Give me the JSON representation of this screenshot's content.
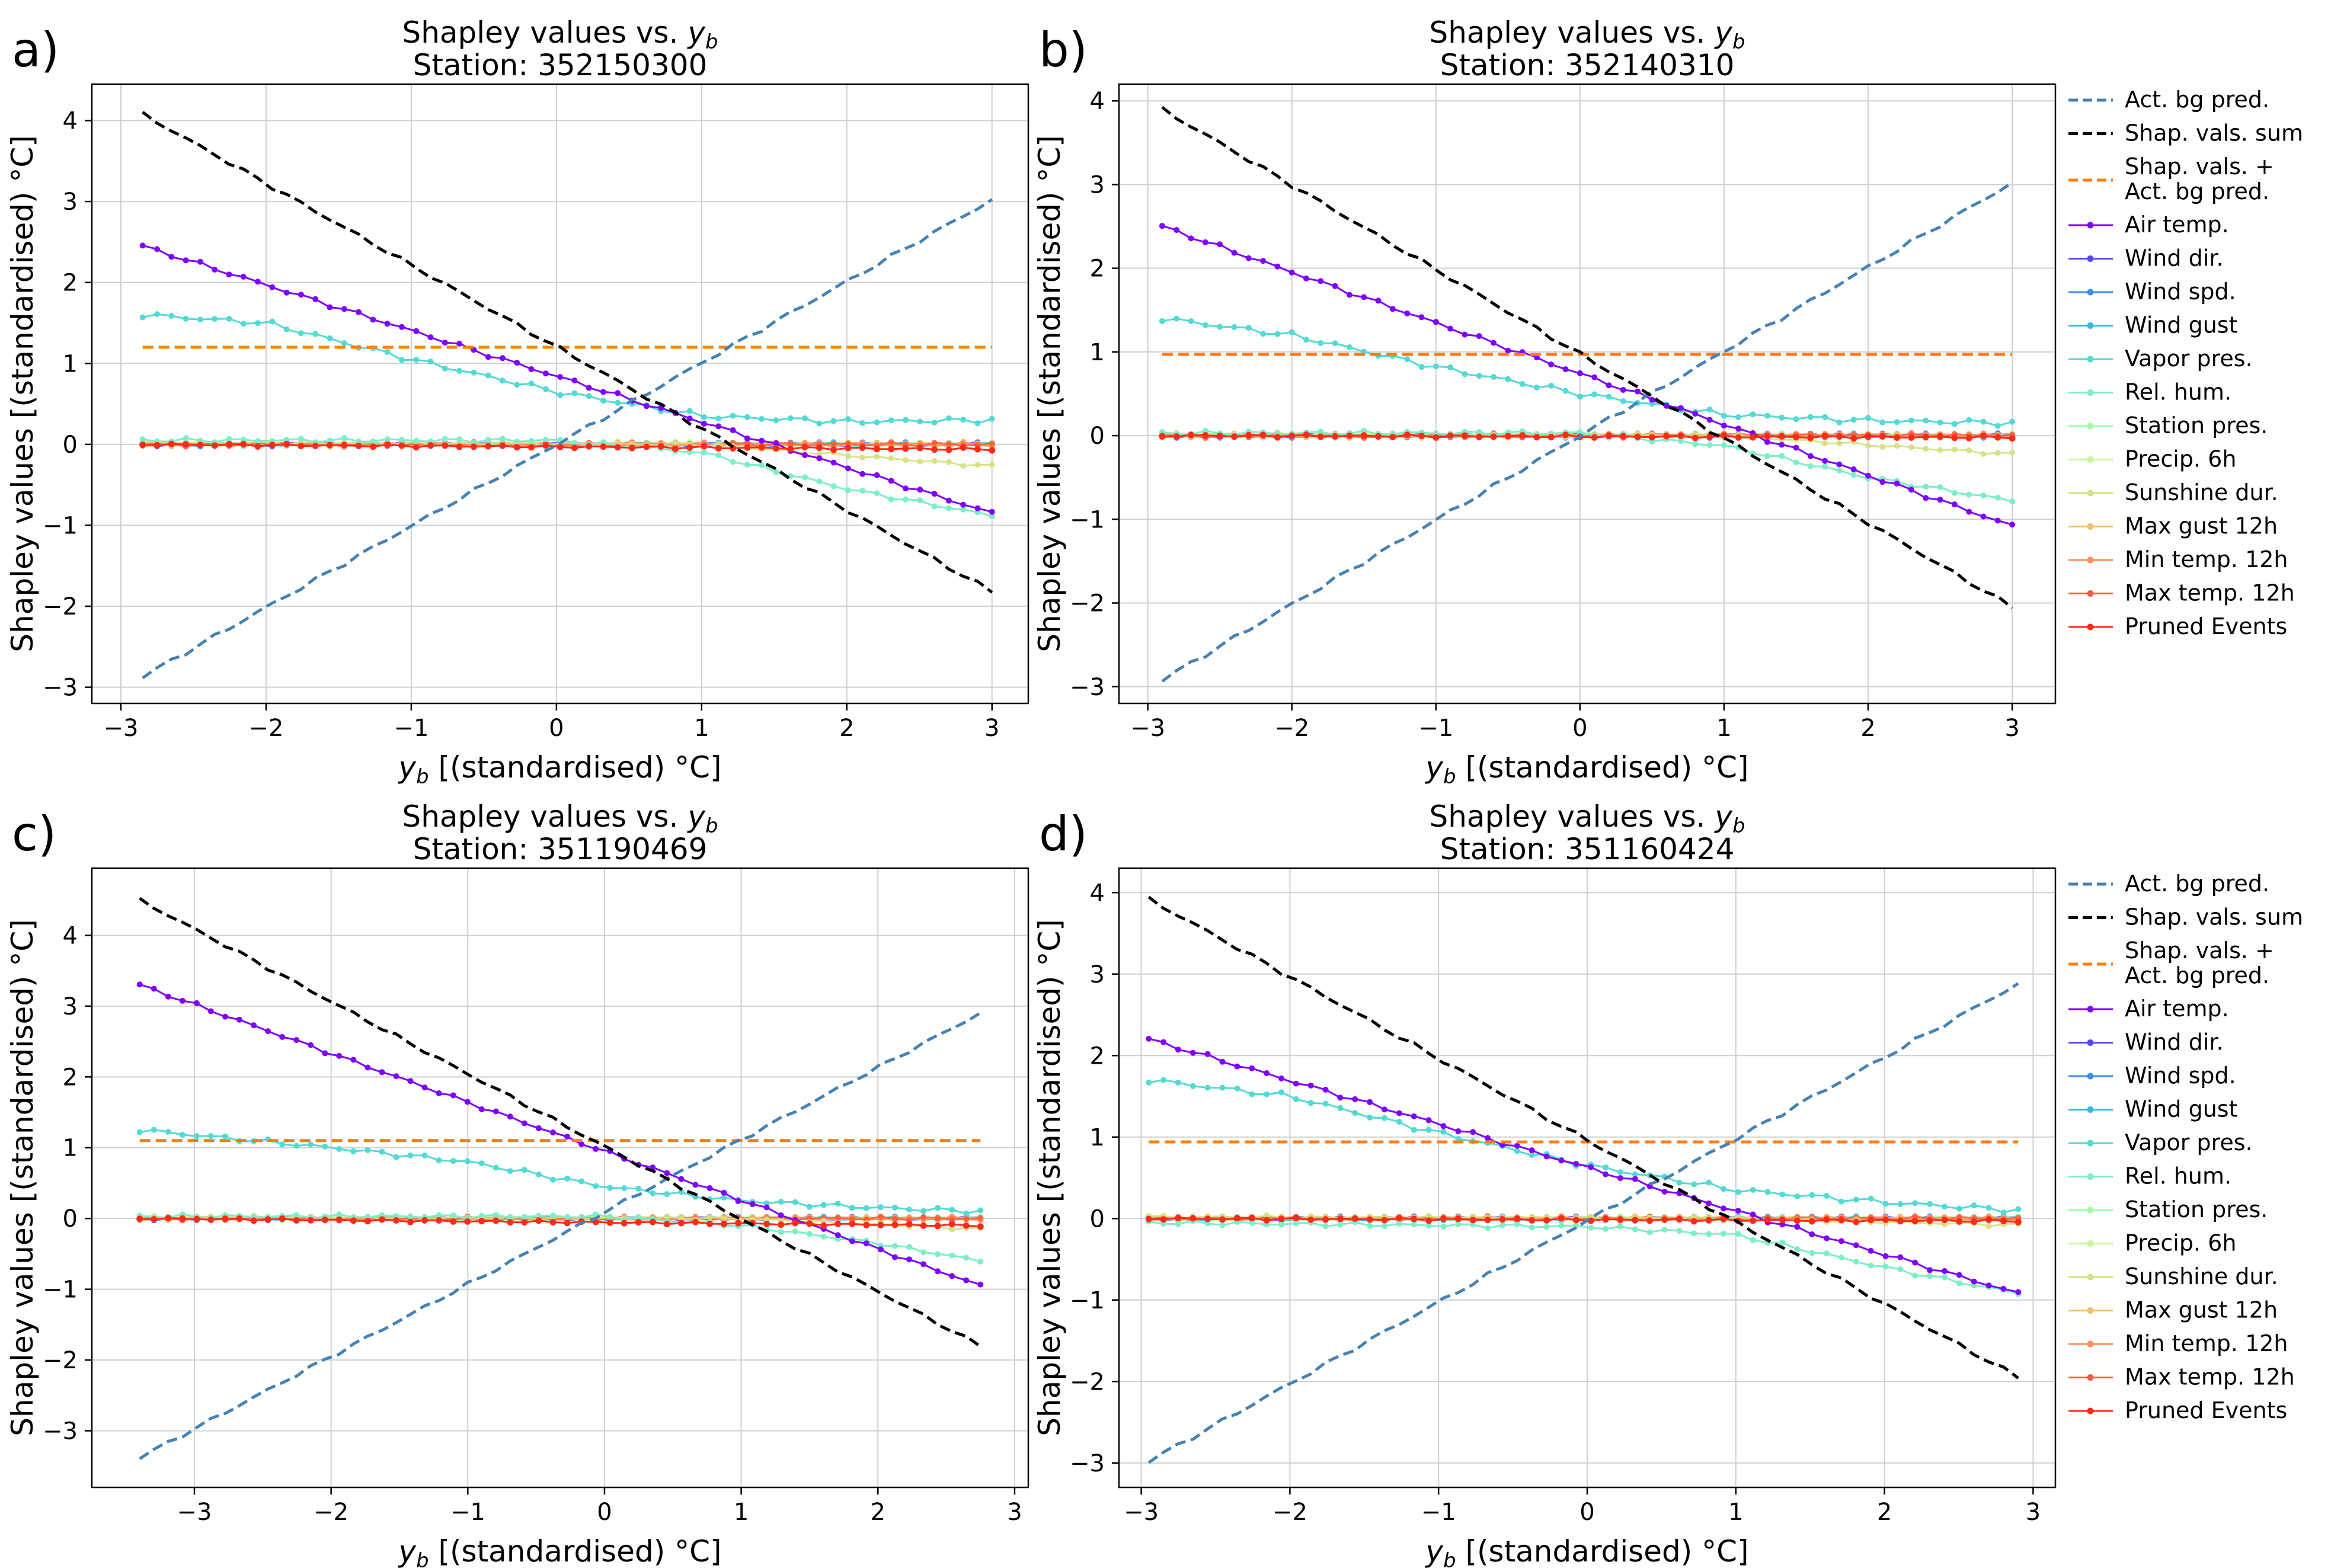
{
  "figure": {
    "legend_order": [
      "act_bg",
      "shap_sum",
      "shap_plus_bg",
      "air_temp",
      "wind_dir",
      "wind_spd",
      "wind_gust",
      "vapor_pres",
      "rel_hum",
      "station_pres",
      "precip_6h",
      "sunshine_dur",
      "max_gust_12h",
      "min_temp_12h",
      "max_temp_12h",
      "pruned_events"
    ],
    "legend_labels": {
      "act_bg": "Act. bg pred.",
      "shap_sum": "Shap. vals. sum",
      "shap_plus_bg": "Shap. vals. +\nAct. bg pred.",
      "air_temp": "Air temp.",
      "wind_dir": "Wind dir.",
      "wind_spd": "Wind spd.",
      "wind_gust": "Wind gust",
      "vapor_pres": "Vapor pres.",
      "rel_hum": "Rel. hum.",
      "station_pres": "Station pres.",
      "precip_6h": "Precip. 6h",
      "sunshine_dur": "Sunshine dur.",
      "max_gust_12h": "Max gust 12h",
      "min_temp_12h": "Min temp. 12h",
      "max_temp_12h": "Max temp. 12h",
      "pruned_events": "Pruned Events"
    },
    "series_colors": {
      "act_bg": "#4682b4",
      "shap_sum": "#000000",
      "shap_plus_bg": "#ff7f0e",
      "air_temp": "#8000ff",
      "wind_dir": "#5a48f8",
      "wind_spd": "#3b8ef0",
      "wind_gust": "#2fb8e8",
      "vapor_pres": "#53dad5",
      "rel_hum": "#7cefc6",
      "station_pres": "#a2fbad",
      "precip_6h": "#c4f59a",
      "sunshine_dur": "#d7e07e",
      "max_gust_12h": "#f0c066",
      "min_temp_12h": "#ff8c52",
      "max_temp_12h": "#ff5a3c",
      "pruned_events": "#ff2a1a"
    }
  },
  "chart_data": [
    {
      "type": "line",
      "panel_label": "a)",
      "title": "Shapley values vs. y",
      "title_sub": "b",
      "subtitle": "Station: 352150300",
      "xlabel": "y",
      "xlabel_sub": "b",
      "xlabel_units": " [(standardised) °C]",
      "ylabel": "Shapley values [(standardised) °C]",
      "grid": true,
      "legend": false,
      "xlim": [
        -3.2,
        3.25
      ],
      "ylim": [
        -3.2,
        4.45
      ],
      "xticks": [
        -3,
        -2,
        -1,
        0,
        1,
        2,
        3
      ],
      "yticks": [
        -3,
        -2,
        -1,
        0,
        1,
        2,
        3,
        4
      ],
      "x_range": [
        -2.85,
        3.0
      ],
      "series": {
        "act_bg": {
          "x": [
            -2.85,
            3.0
          ],
          "y": [
            -2.87,
            3.02
          ]
        },
        "shap_sum": {
          "x": [
            -2.85,
            3.0
          ],
          "y": [
            4.08,
            -1.82
          ]
        },
        "shap_plus_bg": {
          "x": [
            -2.85,
            3.0
          ],
          "y": [
            1.2,
            1.2
          ]
        },
        "air_temp": {
          "x": [
            -2.85,
            3.0
          ],
          "y": [
            2.45,
            -0.85
          ]
        },
        "vapor_pres_a": {
          "x": [
            -2.85,
            -2.0,
            -1.0,
            0.0,
            1.0,
            2.0,
            3.0
          ],
          "y": [
            1.6,
            1.5,
            1.05,
            0.65,
            0.35,
            0.28,
            0.3
          ]
        },
        "rel_hum": {
          "x": [
            -2.85,
            0.0,
            1.0,
            2.0,
            3.0
          ],
          "y": [
            0.05,
            0.05,
            -0.1,
            -0.55,
            -0.88
          ]
        },
        "sunshine_dur": {
          "x": [
            -2.85,
            1.0,
            3.0
          ],
          "y": [
            0.02,
            0.0,
            -0.27
          ]
        },
        "pruned_events": {
          "x": [
            -2.85,
            3.0
          ],
          "y": [
            0.0,
            -0.06
          ]
        }
      }
    },
    {
      "type": "line",
      "panel_label": "b)",
      "title": "Shapley values vs. y",
      "title_sub": "b",
      "subtitle": "Station: 352140310",
      "xlabel": "y",
      "xlabel_sub": "b",
      "xlabel_units": " [(standardised) °C]",
      "ylabel": "Shapley values [(standardised) °C]",
      "grid": true,
      "legend": true,
      "legend_position": "outside-right",
      "xlim": [
        -3.2,
        3.3
      ],
      "ylim": [
        -3.2,
        4.2
      ],
      "xticks": [
        -3,
        -2,
        -1,
        0,
        1,
        2,
        3
      ],
      "yticks": [
        -3,
        -2,
        -1,
        0,
        1,
        2,
        3,
        4
      ],
      "x_range": [
        -2.9,
        3.0
      ],
      "series": {
        "act_bg": {
          "x": [
            -2.9,
            3.0
          ],
          "y": [
            -2.92,
            3.02
          ]
        },
        "shap_sum": {
          "x": [
            -2.9,
            3.0
          ],
          "y": [
            3.9,
            -2.05
          ]
        },
        "shap_plus_bg": {
          "x": [
            -2.9,
            3.0
          ],
          "y": [
            0.97,
            0.97
          ]
        },
        "air_temp": {
          "x": [
            -2.9,
            3.0
          ],
          "y": [
            2.5,
            -1.08
          ]
        },
        "vapor_pres_a": {
          "x": [
            -2.9,
            -2.0,
            -1.0,
            0.0,
            1.0,
            2.0,
            3.0
          ],
          "y": [
            1.4,
            1.2,
            0.82,
            0.5,
            0.25,
            0.18,
            0.15
          ]
        },
        "rel_hum": {
          "x": [
            -2.9,
            0.0,
            1.0,
            2.0,
            3.0
          ],
          "y": [
            0.03,
            0.03,
            -0.12,
            -0.5,
            -0.78
          ]
        },
        "sunshine_dur": {
          "x": [
            -2.9,
            1.0,
            3.0
          ],
          "y": [
            0.02,
            0.0,
            -0.22
          ]
        },
        "pruned_events": {
          "x": [
            -2.9,
            3.0
          ],
          "y": [
            0.0,
            -0.02
          ]
        }
      }
    },
    {
      "type": "line",
      "panel_label": "c)",
      "title": "Shapley values vs. y",
      "title_sub": "b",
      "subtitle": "Station: 351190469",
      "xlabel": "y",
      "xlabel_sub": "b",
      "xlabel_units": " [(standardised) °C]",
      "ylabel": "Shapley values [(standardised) °C]",
      "grid": true,
      "legend": false,
      "xlim": [
        -3.75,
        3.1
      ],
      "ylim": [
        -3.8,
        4.95
      ],
      "xticks": [
        -3,
        -2,
        -1,
        0,
        1,
        2,
        3
      ],
      "yticks": [
        -3,
        -2,
        -1,
        0,
        1,
        2,
        3,
        4
      ],
      "x_range": [
        -3.4,
        2.75
      ],
      "series": {
        "act_bg": {
          "x": [
            -3.4,
            2.75
          ],
          "y": [
            -3.38,
            2.9
          ]
        },
        "shap_sum": {
          "x": [
            -3.4,
            2.75
          ],
          "y": [
            4.5,
            -1.8
          ]
        },
        "shap_plus_bg": {
          "x": [
            -3.4,
            2.75
          ],
          "y": [
            1.1,
            1.1
          ]
        },
        "air_temp": {
          "x": [
            -3.4,
            2.75
          ],
          "y": [
            3.3,
            -0.95
          ]
        },
        "vapor_pres_a": {
          "x": [
            -3.4,
            -2.0,
            -1.0,
            0.0,
            1.0,
            2.0,
            2.75
          ],
          "y": [
            1.25,
            1.0,
            0.8,
            0.45,
            0.25,
            0.15,
            0.1
          ]
        },
        "rel_hum": {
          "x": [
            -3.4,
            0.0,
            1.0,
            2.0,
            2.75
          ],
          "y": [
            0.03,
            0.03,
            -0.1,
            -0.35,
            -0.6
          ]
        },
        "sunshine_dur": {
          "x": [
            -3.4,
            1.0,
            2.75
          ],
          "y": [
            0.02,
            0.0,
            -0.15
          ]
        },
        "pruned_events": {
          "x": [
            -3.4,
            2.75
          ],
          "y": [
            0.0,
            -0.1
          ]
        }
      }
    },
    {
      "type": "line",
      "panel_label": "d)",
      "title": "Shapley values vs. y",
      "title_sub": "b",
      "subtitle": "Station: 351160424",
      "xlabel": "y",
      "xlabel_sub": "b",
      "xlabel_units": " [(standardised) °C]",
      "ylabel": "Shapley values [(standardised) °C]",
      "grid": true,
      "legend": true,
      "legend_position": "outside-right",
      "xlim": [
        -3.15,
        3.15
      ],
      "ylim": [
        -3.3,
        4.3
      ],
      "xticks": [
        -3,
        -2,
        -1,
        0,
        1,
        2,
        3
      ],
      "yticks": [
        -3,
        -2,
        -1,
        0,
        1,
        2,
        3,
        4
      ],
      "x_range": [
        -2.95,
        2.9
      ],
      "series": {
        "act_bg": {
          "x": [
            -2.95,
            2.9
          ],
          "y": [
            -2.98,
            2.88
          ]
        },
        "shap_sum": {
          "x": [
            -2.95,
            2.9
          ],
          "y": [
            3.92,
            -1.95
          ]
        },
        "shap_plus_bg": {
          "x": [
            -2.95,
            2.9
          ],
          "y": [
            0.94,
            0.94
          ]
        },
        "air_temp": {
          "x": [
            -2.95,
            2.9
          ],
          "y": [
            2.2,
            -0.92
          ]
        },
        "vapor_pres_a": {
          "x": [
            -2.95,
            -2.0,
            -1.0,
            0.0,
            1.0,
            2.0,
            2.9
          ],
          "y": [
            1.7,
            1.5,
            1.05,
            0.65,
            0.35,
            0.2,
            0.1
          ]
        },
        "rel_hum": {
          "x": [
            -2.95,
            0.0,
            1.0,
            2.0,
            2.9
          ],
          "y": [
            -0.05,
            -0.1,
            -0.2,
            -0.6,
            -0.92
          ]
        },
        "sunshine_dur": {
          "x": [
            -2.95,
            1.0,
            2.9
          ],
          "y": [
            0.02,
            0.0,
            -0.08
          ]
        },
        "pruned_events": {
          "x": [
            -2.95,
            2.9
          ],
          "y": [
            0.0,
            -0.03
          ]
        }
      }
    }
  ]
}
